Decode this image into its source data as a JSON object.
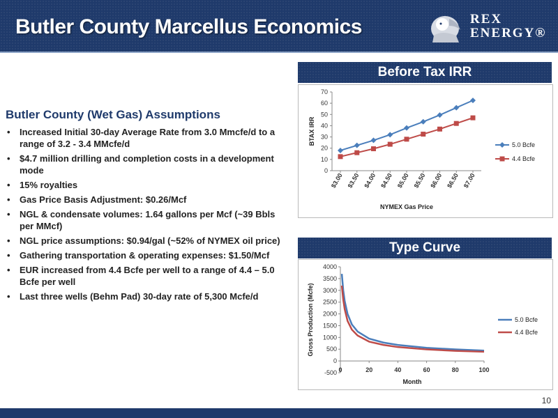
{
  "header": {
    "title": "Butler County Marcellus Economics"
  },
  "logo": {
    "line1": "REX",
    "line2": "ENERGY®"
  },
  "left": {
    "heading": "Butler County (Wet Gas) Assumptions",
    "bullets": [
      "Increased Initial 30-day Average Rate from 3.0 Mmcfe/d to a range of 3.2 - 3.4 MMcfe/d",
      "$4.7 million drilling and completion costs in a development mode",
      "15% royalties",
      "Gas Price Basis Adjustment: $0.26/Mcf",
      "NGL & condensate volumes: 1.64 gallons per Mcf (~39 Bbls per MMcf)",
      "NGL price assumptions: $0.94/gal (~52% of NYMEX oil price)",
      "Gathering transportation & operating expenses: $1.50/Mcf",
      "EUR increased from 4.4 Bcfe per well to a range of 4.4 – 5.0 Bcfe per well",
      "Last three wells (Behm Pad) 30-day rate of 5,300 Mcfe/d"
    ]
  },
  "panels": {
    "irr_title": "Before Tax IRR",
    "type_title": "Type Curve"
  },
  "page_number": "10",
  "chart_data": [
    {
      "type": "line",
      "title": "Before Tax IRR",
      "xlabel": "NYMEX Gas Price",
      "ylabel": "BTAX IRR",
      "categories": [
        "$3.00",
        "$3.50",
        "$4.00",
        "$4.50",
        "$5.00",
        "$5.50",
        "$6.00",
        "$6.50",
        "$7.00"
      ],
      "ylim": [
        0,
        70
      ],
      "yticks": [
        0,
        10,
        20,
        30,
        40,
        50,
        60,
        70
      ],
      "series": [
        {
          "name": "5.0 Bcfe",
          "color": "#4a7ebb",
          "marker": "diamond",
          "values": [
            18,
            22.5,
            27,
            32,
            38,
            43.5,
            49.5,
            56,
            62.5
          ]
        },
        {
          "name": "4.4 Bcfe",
          "color": "#be4b48",
          "marker": "square",
          "values": [
            12.5,
            16,
            19.5,
            23.5,
            28,
            32.5,
            37,
            42,
            47
          ]
        }
      ],
      "legend": "right",
      "grid": false
    },
    {
      "type": "line",
      "title": "Type Curve",
      "xlabel": "Month",
      "ylabel": "Gross Production (Mcfe)",
      "xlim": [
        0,
        100
      ],
      "xticks": [
        0,
        20,
        40,
        60,
        80,
        100
      ],
      "ylim": [
        -500,
        4000
      ],
      "yticks": [
        -500,
        0,
        500,
        1000,
        1500,
        2000,
        2500,
        3000,
        3500,
        4000
      ],
      "series": [
        {
          "name": "5.0 Bcfe",
          "color": "#4a7ebb",
          "x": [
            1,
            2,
            3,
            5,
            8,
            12,
            20,
            30,
            40,
            60,
            80,
            100
          ],
          "values": [
            3700,
            3000,
            2550,
            2000,
            1550,
            1250,
            950,
            780,
            680,
            560,
            490,
            440
          ]
        },
        {
          "name": "4.4 Bcfe",
          "color": "#be4b48",
          "x": [
            1,
            2,
            3,
            5,
            8,
            12,
            20,
            30,
            40,
            60,
            80,
            100
          ],
          "values": [
            3200,
            2600,
            2200,
            1700,
            1330,
            1080,
            820,
            680,
            590,
            490,
            430,
            390
          ]
        }
      ],
      "legend": "right",
      "grid": false
    }
  ]
}
